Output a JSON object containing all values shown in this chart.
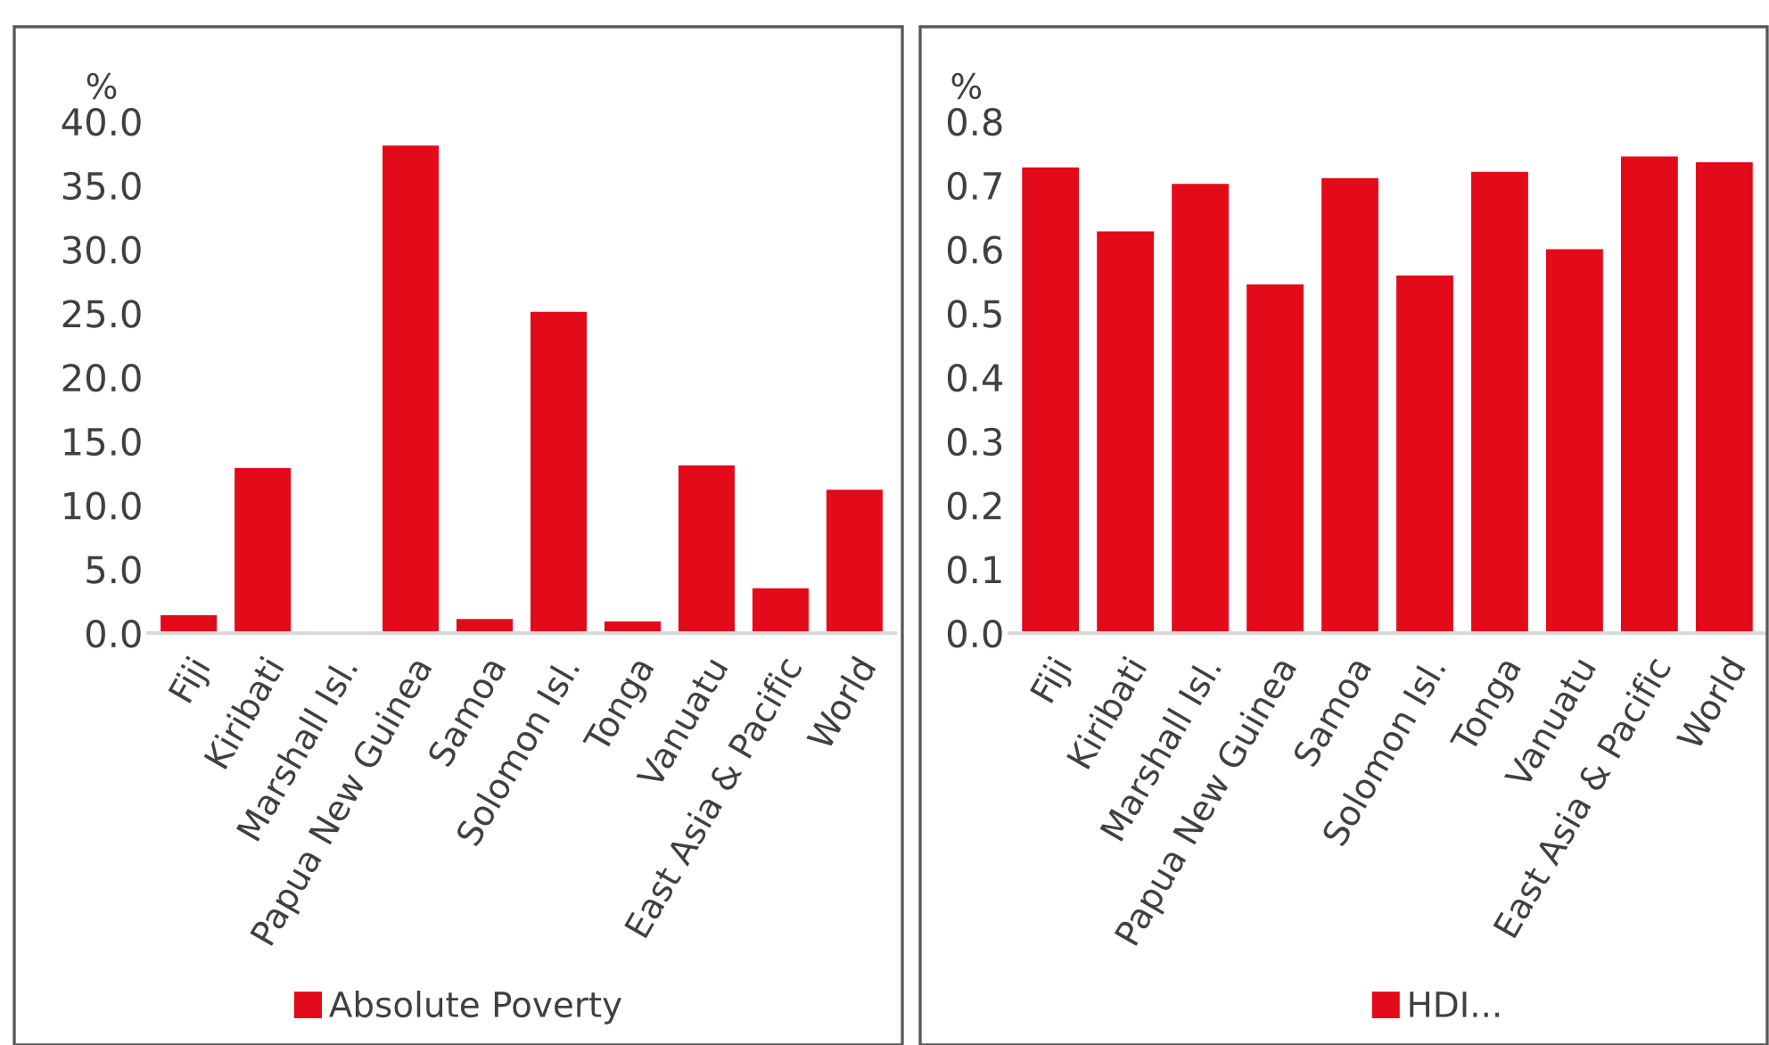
{
  "chart_data": [
    {
      "type": "bar",
      "ylabel": "%",
      "categories": [
        "Fiji",
        "Kiribati",
        "Marshall Isl.",
        "Papua New Guinea",
        "Samoa",
        "Solomon Isl.",
        "Tonga",
        "Vanuatu",
        "East Asia & Pacific",
        "World"
      ],
      "series": [
        {
          "name": "Absolute Poverty",
          "color": "#e30a1a",
          "values": [
            1.4,
            12.9,
            null,
            38.1,
            1.1,
            25.1,
            0.9,
            13.1,
            3.5,
            11.2
          ]
        }
      ],
      "ylim": [
        0,
        40
      ],
      "yticks": [
        {
          "value": 0,
          "label": "0.0"
        },
        {
          "value": 5,
          "label": "5.0"
        },
        {
          "value": 10,
          "label": "10.0"
        },
        {
          "value": 15,
          "label": "15.0"
        },
        {
          "value": 20,
          "label": "20.0"
        },
        {
          "value": 25,
          "label": "25.0"
        },
        {
          "value": 30,
          "label": "30.0"
        },
        {
          "value": 35,
          "label": "35.0"
        },
        {
          "value": 40,
          "label": "40.0"
        }
      ],
      "grid": false,
      "legend": "bottom"
    },
    {
      "type": "bar",
      "ylabel": "%",
      "categories": [
        "Fiji",
        "Kiribati",
        "Marshall Isl.",
        "Papua New Guinea",
        "Samoa",
        "Solomon Isl.",
        "Tonga",
        "Vanuatu",
        "East Asia & Pacific",
        "World"
      ],
      "series": [
        {
          "name": "HDI...",
          "color": "#e30a1a",
          "values": [
            0.728,
            0.628,
            0.702,
            0.545,
            0.711,
            0.559,
            0.721,
            0.6,
            0.745,
            0.736
          ]
        }
      ],
      "ylim": [
        0,
        0.8
      ],
      "yticks": [
        {
          "value": 0,
          "label": "0.0"
        },
        0.1,
        0.2,
        0.3,
        0.4,
        0.5,
        0.6,
        0.7,
        0.8
      ],
      "grid": false,
      "legend": "bottom"
    }
  ]
}
